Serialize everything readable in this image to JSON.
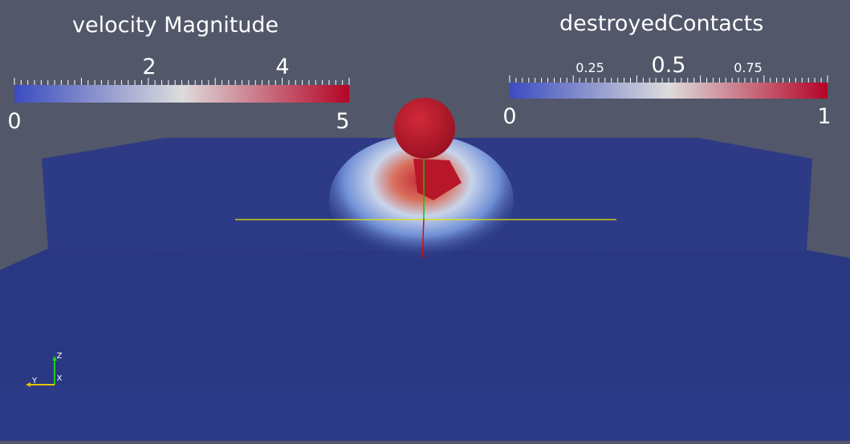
{
  "window": {
    "background": "#525769"
  },
  "legend_velocity": {
    "title": "velocity Magnitude",
    "min_label": "0",
    "max_label": "5",
    "tick_labels": [
      "2",
      "4"
    ],
    "colors": [
      "#3b4cc0",
      "#dddcdc",
      "#b40426"
    ]
  },
  "legend_contacts": {
    "title": "destroyedContacts",
    "min_label": "0",
    "max_label": "1",
    "tick_labels": [
      "0.25",
      "0.5",
      "0.75"
    ],
    "colors": [
      "#3b4cc0",
      "#dddcdc",
      "#b40426"
    ]
  },
  "scene": {
    "slab_color": "#2d3a85",
    "floor_color": "#29377f",
    "sphere_color": "#b81d2e"
  },
  "axes": {
    "z_label": "Z",
    "y_label": "Y",
    "x_label": "X"
  }
}
